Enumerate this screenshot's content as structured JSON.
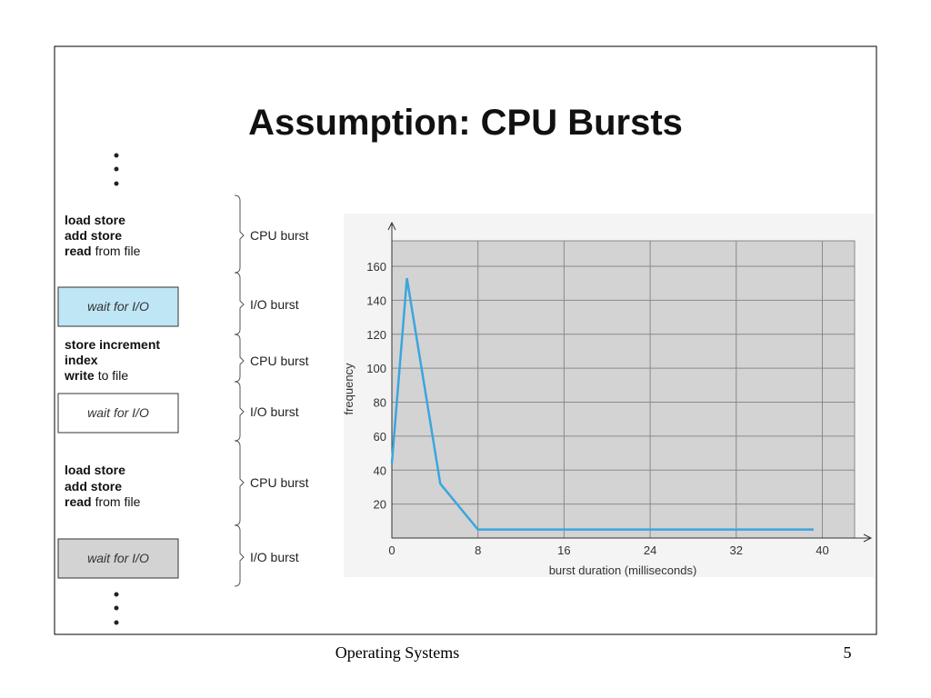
{
  "slide": {
    "title": "Assumption: CPU Bursts",
    "footer": "Operating Systems",
    "page_number": "5"
  },
  "diagram": {
    "blocks": [
      {
        "lines": [
          {
            "bold": "load store"
          },
          {
            "bold": "add store"
          },
          {
            "bold": "read",
            "rest": "from file"
          }
        ],
        "label": "CPU burst"
      },
      {
        "text": "wait for I/O",
        "fill": "#bfe6f5",
        "label": "I/O burst"
      },
      {
        "lines": [
          {
            "bold": "store increment"
          },
          {
            "bold": "index"
          },
          {
            "bold": "write",
            "rest": "to file"
          }
        ],
        "label": "CPU burst"
      },
      {
        "text": "wait for I/O",
        "fill": "#ffffff",
        "label": "I/O burst"
      },
      {
        "lines": [
          {
            "bold": "load store"
          },
          {
            "bold": "add store"
          },
          {
            "bold": "read",
            "rest": "from file"
          }
        ],
        "label": "CPU burst"
      },
      {
        "text": "wait for I/O",
        "fill": "#d3d3d3",
        "label": "I/O burst"
      }
    ]
  },
  "chart_data": {
    "type": "line",
    "x_label": "burst duration (milliseconds)",
    "y_label": "frequency",
    "x": [
      0,
      1.4,
      4.5,
      8,
      39.2
    ],
    "values": [
      44,
      153,
      32,
      5,
      5
    ],
    "color": "#3aa6dd",
    "xlim": [
      0,
      43
    ],
    "ylim": [
      0,
      175
    ],
    "xticks": [
      0,
      8,
      16,
      24,
      32,
      40
    ],
    "yticks": [
      20,
      40,
      60,
      80,
      100,
      120,
      140,
      160
    ],
    "grid": true
  }
}
